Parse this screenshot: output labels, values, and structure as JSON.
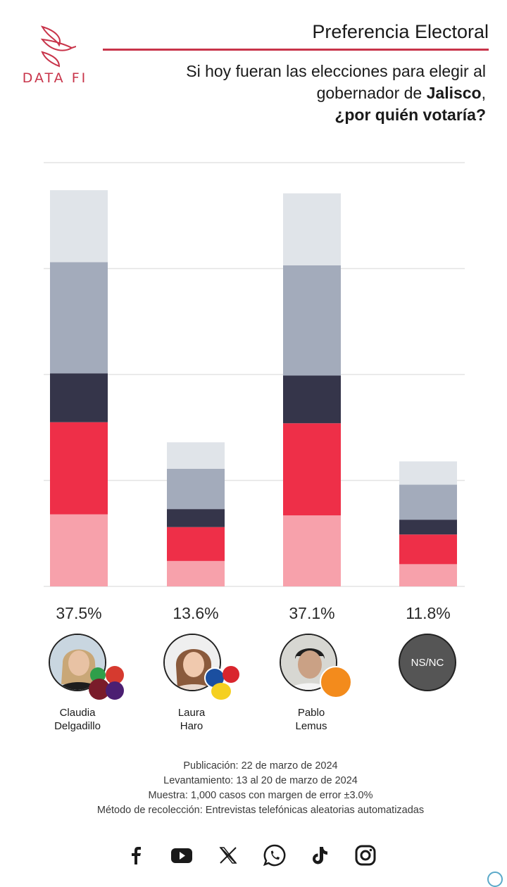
{
  "brand": {
    "logo_text": "DATA FI",
    "accent": "#c8344a"
  },
  "header": {
    "title": "Preferencia Electoral",
    "question_part1": "Si hoy fueran las elecciones para elegir al gobernador de ",
    "question_state": "Jalisco",
    "question_comma": ",",
    "question_part2": "¿por quién votaría?"
  },
  "chart_data": {
    "type": "bar",
    "stacked": true,
    "categories": [
      "Claudia Delgadillo",
      "Laura Haro",
      "Pablo Lemus",
      "NS/NC"
    ],
    "totals": [
      37.5,
      13.6,
      37.1,
      11.8
    ],
    "total_labels": [
      "37.5%",
      "13.6%",
      "37.1%",
      "11.8%"
    ],
    "segment_colors": [
      "#f7a1ab",
      "#ee2f48",
      "#35354a",
      "#a3abbb",
      "#e0e4e9"
    ],
    "segments": [
      [
        6.8,
        8.7,
        4.6,
        10.5,
        6.8
      ],
      [
        2.4,
        3.2,
        1.7,
        3.8,
        2.5
      ],
      [
        6.7,
        8.7,
        4.5,
        10.4,
        6.8
      ],
      [
        2.1,
        2.8,
        1.4,
        3.3,
        2.2
      ]
    ],
    "ylim": [
      0,
      40
    ],
    "grid": true,
    "gridlines": [
      0,
      10,
      20,
      30,
      40
    ]
  },
  "candidates": [
    {
      "first": "Claudia",
      "last": "Delgadillo",
      "badges": [
        "PT",
        "morena",
        "PVEM",
        "HxJ"
      ]
    },
    {
      "first": "Laura",
      "last": "Haro",
      "badges": [
        "PAN",
        "PRI",
        "PRD"
      ]
    },
    {
      "first": "Pablo",
      "last": "Lemus",
      "badges": [
        "MOVIMIENTO CIUDADANO"
      ]
    },
    {
      "label": "NS/NC"
    }
  ],
  "footer": {
    "publicacion": "Publicación: 22 de marzo de 2024",
    "levantamiento": "Levantamiento: 13 al 20 de marzo de 2024",
    "muestra": "Muestra: 1,000 casos con margen de error ±3.0%",
    "metodo": "Método de recolección: Entrevistas telefónicas aleatorias automatizadas"
  },
  "social_icons": [
    "facebook-icon",
    "youtube-icon",
    "x-icon",
    "whatsapp-icon",
    "tiktok-icon",
    "instagram-icon"
  ]
}
